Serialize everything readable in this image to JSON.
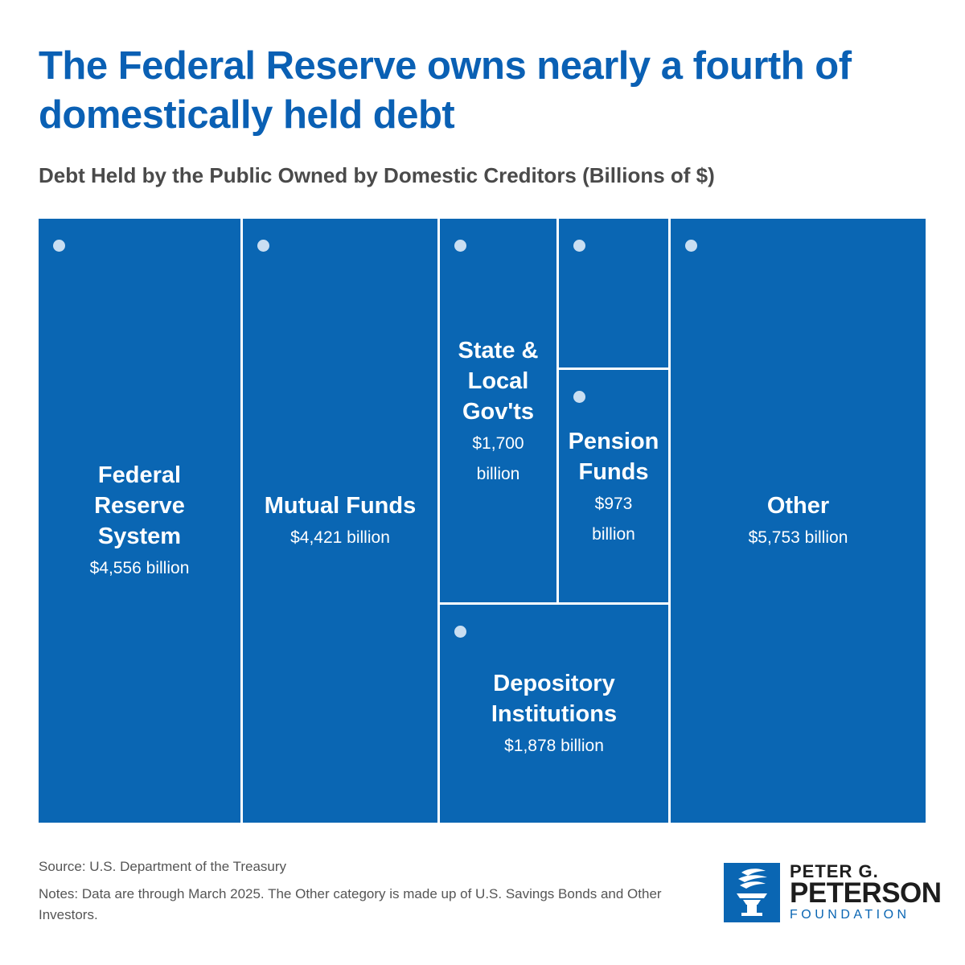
{
  "chart_data": {
    "type": "treemap",
    "title": "The Federal Reserve owns nearly a fourth of domestically held debt",
    "subtitle": "Debt Held by the Public Owned by Domestic Creditors (Billions of $)",
    "unit": "billion",
    "items": [
      {
        "name": "Federal Reserve System",
        "label_lines": [
          "Federal",
          "Reserve",
          "System"
        ],
        "value": 4556,
        "value_lines": [
          "$4,556 billion"
        ]
      },
      {
        "name": "Mutual Funds",
        "label_lines": [
          "Mutual Funds"
        ],
        "value": 4421,
        "value_lines": [
          "$4,421 billion"
        ]
      },
      {
        "name": "State & Local Gov'ts",
        "label_lines": [
          "State &",
          "Local",
          "Gov'ts"
        ],
        "value": 1700,
        "value_lines": [
          "$1,700",
          "billion"
        ]
      },
      {
        "name": "Unlabeled",
        "label_lines": [],
        "value": null,
        "value_lines": []
      },
      {
        "name": "Pension Funds",
        "label_lines": [
          "Pension",
          "Funds"
        ],
        "value": 973,
        "value_lines": [
          "$973",
          "billion"
        ]
      },
      {
        "name": "Depository Institutions",
        "label_lines": [
          "Depository",
          "Institutions"
        ],
        "value": 1878,
        "value_lines": [
          "$1,878 billion"
        ]
      },
      {
        "name": "Other",
        "label_lines": [
          "Other"
        ],
        "value": 5753,
        "value_lines": [
          "$5,753 billion"
        ]
      }
    ],
    "colors": {
      "tile": "#0a66b3",
      "dot": "#c9def2",
      "title": "#0a60b4"
    }
  },
  "footer": {
    "source": "Source: U.S. Department of the Treasury",
    "notes": "Notes: Data are through March 2025. The Other category is made up of U.S. Savings Bonds and Other Investors."
  },
  "logo": {
    "line1": "PETER G.",
    "line2": "PETERSON",
    "line3": "FOUNDATION",
    "icon": "torch-icon"
  }
}
